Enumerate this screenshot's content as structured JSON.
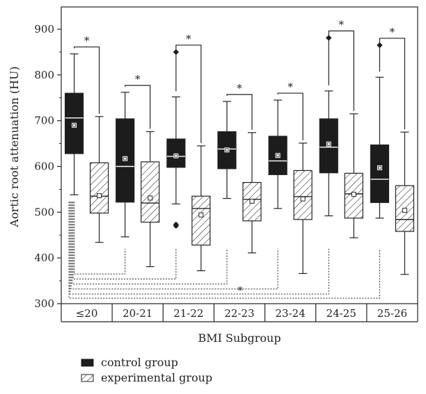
{
  "chart_data": {
    "type": "box",
    "ylabel": "Aortic root attenuation (HU)",
    "xlabel": "BMI Subgroup",
    "ylim": [
      300,
      960
    ],
    "yticks": [
      300,
      400,
      500,
      600,
      700,
      800,
      900
    ],
    "categories": [
      "≤20",
      "20-21",
      "21-22",
      "22-23",
      "23-24",
      "24-25",
      "25-26"
    ],
    "significance_marker": "*",
    "series": [
      {
        "name": "control group",
        "pattern": "solid",
        "color": "#1c1c1c",
        "boxes": [
          {
            "whisker_low": 538,
            "q1": 628,
            "median": 706,
            "q3": 760,
            "whisker_high": 846,
            "mean": 690,
            "outliers": []
          },
          {
            "whisker_low": 446,
            "q1": 522,
            "median": 600,
            "q3": 704,
            "whisker_high": 762,
            "mean": 617,
            "outliers": []
          },
          {
            "whisker_low": 518,
            "q1": 598,
            "median": 622,
            "q3": 660,
            "whisker_high": 752,
            "mean": 623,
            "outliers": [
              850,
              473,
              470
            ]
          },
          {
            "whisker_low": 530,
            "q1": 595,
            "median": 638,
            "q3": 676,
            "whisker_high": 742,
            "mean": 636,
            "outliers": []
          },
          {
            "whisker_low": 508,
            "q1": 582,
            "median": 612,
            "q3": 666,
            "whisker_high": 745,
            "mean": 624,
            "outliers": []
          },
          {
            "whisker_low": 492,
            "q1": 586,
            "median": 642,
            "q3": 704,
            "whisker_high": 765,
            "mean": 649,
            "outliers": [
              881
            ]
          },
          {
            "whisker_low": 487,
            "q1": 521,
            "median": 572,
            "q3": 647,
            "whisker_high": 795,
            "mean": 597,
            "outliers": [
              865
            ]
          }
        ]
      },
      {
        "name": "experimental group",
        "pattern": "hatched",
        "color": "#ffffff",
        "boxes": [
          {
            "whisker_low": 434,
            "q1": 498,
            "median": 535,
            "q3": 608,
            "whisker_high": 709,
            "mean": 536,
            "outliers": []
          },
          {
            "whisker_low": 381,
            "q1": 478,
            "median": 520,
            "q3": 610,
            "whisker_high": 676,
            "mean": 531,
            "outliers": []
          },
          {
            "whisker_low": 372,
            "q1": 428,
            "median": 508,
            "q3": 535,
            "whisker_high": 645,
            "mean": 494,
            "outliers": []
          },
          {
            "whisker_low": 411,
            "q1": 481,
            "median": 528,
            "q3": 565,
            "whisker_high": 674,
            "mean": 524,
            "outliers": []
          },
          {
            "whisker_low": 366,
            "q1": 484,
            "median": 534,
            "q3": 591,
            "whisker_high": 651,
            "mean": 529,
            "outliers": []
          },
          {
            "whisker_low": 444,
            "q1": 487,
            "median": 540,
            "q3": 585,
            "whisker_high": 715,
            "mean": 539,
            "outliers": []
          },
          {
            "whisker_low": 364,
            "q1": 458,
            "median": 484,
            "q3": 558,
            "whisker_high": 675,
            "mean": 504,
            "outliers": []
          }
        ]
      }
    ],
    "legend": {
      "position": "bottom-left",
      "items": [
        {
          "label": "control group",
          "pattern": "solid"
        },
        {
          "label": "experimental group",
          "pattern": "hatched"
        }
      ]
    },
    "grid": false
  }
}
